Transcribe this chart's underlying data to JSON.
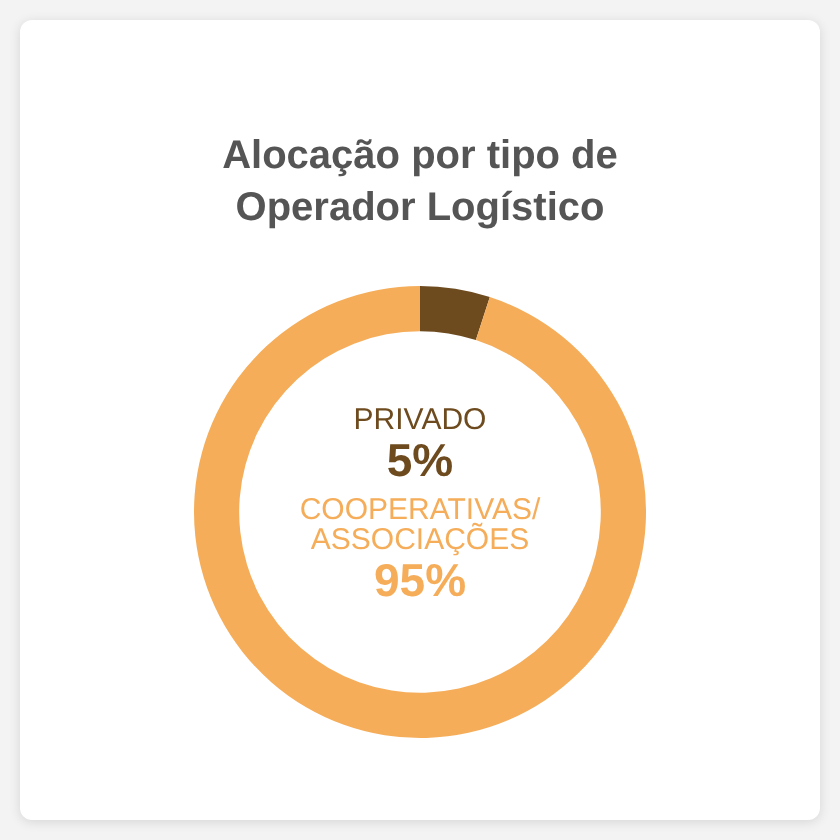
{
  "chart_data": {
    "type": "donut",
    "title": "Alocação por tipo de Operador Logístico",
    "categories": [
      "PRIVADO",
      "COOPERATIVAS/ASSOCIAÇÕES"
    ],
    "values": [
      5,
      95
    ],
    "colors": [
      "#6e4b1f",
      "#f5ad5a"
    ],
    "value_labels": [
      "5%",
      "95%"
    ]
  }
}
